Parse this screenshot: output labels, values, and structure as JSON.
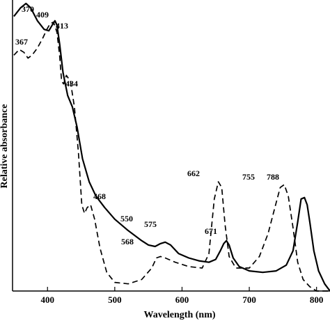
{
  "chart_data": {
    "type": "line",
    "title": "",
    "xlabel": "Wavelength (nm)",
    "ylabel": "Relative absorbance",
    "xlim": [
      348,
      820
    ],
    "ylim": [
      0,
      1
    ],
    "x_ticks": [
      400,
      500,
      600,
      700,
      800
    ],
    "grid": false,
    "legend": "none",
    "series": [
      {
        "style": "solid",
        "color": "#000000",
        "points": [
          [
            350,
            0.955
          ],
          [
            360,
            0.985
          ],
          [
            368,
            1.0
          ],
          [
            375,
            0.985
          ],
          [
            385,
            0.94
          ],
          [
            395,
            0.91
          ],
          [
            402,
            0.905
          ],
          [
            407,
            0.925
          ],
          [
            411,
            0.94
          ],
          [
            414,
            0.925
          ],
          [
            418,
            0.86
          ],
          [
            423,
            0.76
          ],
          [
            430,
            0.68
          ],
          [
            437,
            0.64
          ],
          [
            444,
            0.57
          ],
          [
            452,
            0.46
          ],
          [
            462,
            0.38
          ],
          [
            472,
            0.33
          ],
          [
            485,
            0.29
          ],
          [
            500,
            0.25
          ],
          [
            520,
            0.21
          ],
          [
            540,
            0.175
          ],
          [
            550,
            0.16
          ],
          [
            560,
            0.155
          ],
          [
            568,
            0.165
          ],
          [
            575,
            0.17
          ],
          [
            583,
            0.16
          ],
          [
            595,
            0.13
          ],
          [
            610,
            0.115
          ],
          [
            625,
            0.105
          ],
          [
            640,
            0.1
          ],
          [
            650,
            0.11
          ],
          [
            657,
            0.14
          ],
          [
            662,
            0.165
          ],
          [
            666,
            0.175
          ],
          [
            670,
            0.16
          ],
          [
            676,
            0.115
          ],
          [
            685,
            0.085
          ],
          [
            700,
            0.07
          ],
          [
            720,
            0.065
          ],
          [
            740,
            0.07
          ],
          [
            755,
            0.09
          ],
          [
            765,
            0.14
          ],
          [
            772,
            0.24
          ],
          [
            777,
            0.32
          ],
          [
            782,
            0.325
          ],
          [
            786,
            0.3
          ],
          [
            790,
            0.24
          ],
          [
            796,
            0.14
          ],
          [
            803,
            0.07
          ],
          [
            812,
            0.025
          ],
          [
            820,
            0.0
          ]
        ]
      },
      {
        "style": "dashed",
        "color": "#000000",
        "points": [
          [
            350,
            0.82
          ],
          [
            358,
            0.84
          ],
          [
            365,
            0.83
          ],
          [
            371,
            0.81
          ],
          [
            377,
            0.82
          ],
          [
            385,
            0.845
          ],
          [
            393,
            0.88
          ],
          [
            399,
            0.91
          ],
          [
            404,
            0.93
          ],
          [
            409,
            0.935
          ],
          [
            414,
            0.9
          ],
          [
            418,
            0.82
          ],
          [
            421,
            0.73
          ],
          [
            424,
            0.72
          ],
          [
            428,
            0.75
          ],
          [
            434,
            0.73
          ],
          [
            440,
            0.64
          ],
          [
            446,
            0.48
          ],
          [
            451,
            0.3
          ],
          [
            455,
            0.27
          ],
          [
            459,
            0.29
          ],
          [
            464,
            0.3
          ],
          [
            470,
            0.25
          ],
          [
            478,
            0.15
          ],
          [
            488,
            0.065
          ],
          [
            500,
            0.03
          ],
          [
            520,
            0.025
          ],
          [
            540,
            0.04
          ],
          [
            555,
            0.08
          ],
          [
            562,
            0.115
          ],
          [
            568,
            0.12
          ],
          [
            575,
            0.115
          ],
          [
            590,
            0.1
          ],
          [
            610,
            0.085
          ],
          [
            630,
            0.08
          ],
          [
            640,
            0.13
          ],
          [
            648,
            0.32
          ],
          [
            654,
            0.38
          ],
          [
            659,
            0.36
          ],
          [
            664,
            0.23
          ],
          [
            670,
            0.12
          ],
          [
            680,
            0.08
          ],
          [
            700,
            0.08
          ],
          [
            715,
            0.12
          ],
          [
            728,
            0.2
          ],
          [
            738,
            0.29
          ],
          [
            746,
            0.36
          ],
          [
            752,
            0.37
          ],
          [
            758,
            0.33
          ],
          [
            765,
            0.22
          ],
          [
            772,
            0.1
          ],
          [
            780,
            0.04
          ],
          [
            790,
            0.015
          ],
          [
            800,
            0.0
          ],
          [
            820,
            0.0
          ]
        ]
      }
    ],
    "annotations": [
      "370",
      "409",
      "413",
      "367",
      "434",
      "468",
      "550",
      "575",
      "568",
      "662",
      "671",
      "755",
      "788"
    ]
  }
}
